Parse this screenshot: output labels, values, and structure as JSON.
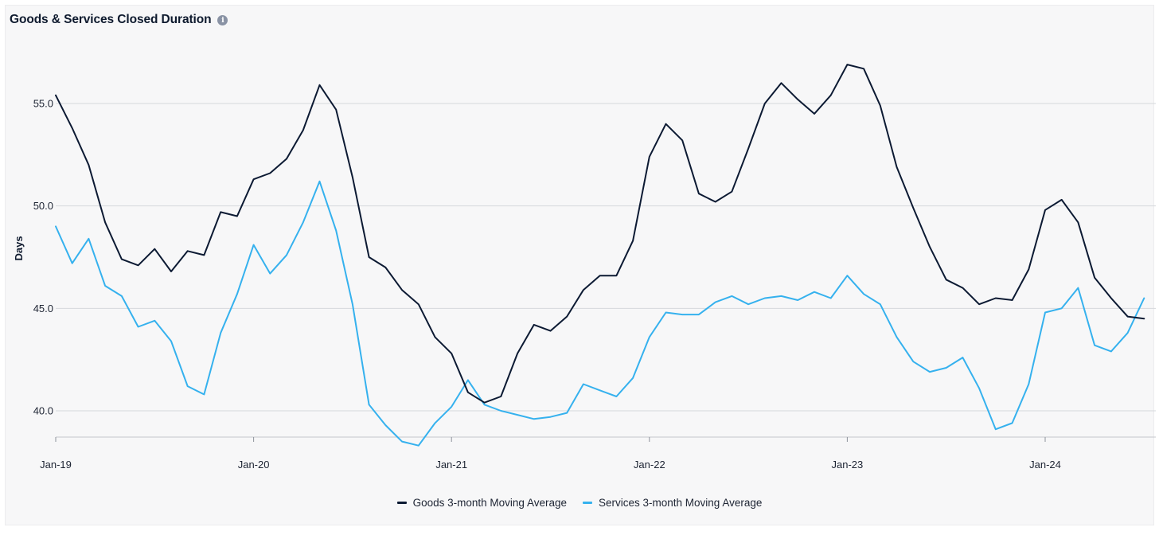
{
  "header": {
    "title": "Goods & Services Closed Duration",
    "info_icon": "info-icon"
  },
  "colors": {
    "goods": "#0c1a33",
    "services": "#35b1ee",
    "grid": "#d6d8dc",
    "background": "#f7f7f8"
  },
  "chart_data": {
    "type": "line",
    "title": "Goods & Services Closed Duration",
    "xlabel": "",
    "ylabel": "Days",
    "x_start": "Jan-19",
    "x_step": "1 month",
    "x_ticks": [
      "Jan-19",
      "Jan-20",
      "Jan-21",
      "Jan-22",
      "Jan-23",
      "Jan-24"
    ],
    "y_ticks": [
      "40.0",
      "45.0",
      "50.0",
      "55.0"
    ],
    "ylim": [
      38.0,
      58.0
    ],
    "grid": "horizontal",
    "legend_position": "bottom-center",
    "series": [
      {
        "name": "Goods 3-month Moving Average",
        "color": "#0c1a33",
        "values": [
          55.4,
          53.8,
          52.0,
          49.2,
          47.4,
          47.1,
          47.9,
          46.8,
          47.8,
          47.6,
          49.7,
          49.5,
          51.3,
          51.6,
          52.3,
          53.7,
          55.9,
          54.7,
          51.4,
          47.5,
          47.0,
          45.9,
          45.2,
          43.6,
          42.8,
          40.9,
          40.4,
          40.7,
          42.8,
          44.2,
          43.9,
          44.6,
          45.9,
          46.6,
          46.6,
          48.3,
          52.4,
          54.0,
          53.2,
          50.6,
          50.2,
          50.7,
          52.8,
          55.0,
          56.0,
          55.2,
          54.5,
          55.4,
          56.9,
          56.7,
          54.9,
          51.9,
          49.9,
          48.0,
          46.4,
          46.0,
          45.2,
          45.5,
          45.4,
          46.9,
          49.8,
          50.3,
          49.2,
          46.5,
          45.5,
          44.6,
          44.5
        ]
      },
      {
        "name": "Services 3-month Moving Average",
        "color": "#35b1ee",
        "values": [
          49.0,
          47.2,
          48.4,
          46.1,
          45.6,
          44.1,
          44.4,
          43.4,
          41.2,
          40.8,
          43.8,
          45.7,
          48.1,
          46.7,
          47.6,
          49.2,
          51.2,
          48.8,
          45.2,
          40.3,
          39.3,
          38.5,
          38.3,
          39.4,
          40.2,
          41.5,
          40.3,
          40.0,
          39.8,
          39.6,
          39.7,
          39.9,
          41.3,
          41.0,
          40.7,
          41.6,
          43.6,
          44.8,
          44.7,
          44.7,
          45.3,
          45.6,
          45.2,
          45.5,
          45.6,
          45.4,
          45.8,
          45.5,
          46.6,
          45.7,
          45.2,
          43.6,
          42.4,
          41.9,
          42.1,
          42.6,
          41.1,
          39.1,
          39.4,
          41.3,
          44.8,
          45.0,
          46.0,
          43.2,
          42.9,
          43.8,
          45.5
        ]
      }
    ]
  }
}
